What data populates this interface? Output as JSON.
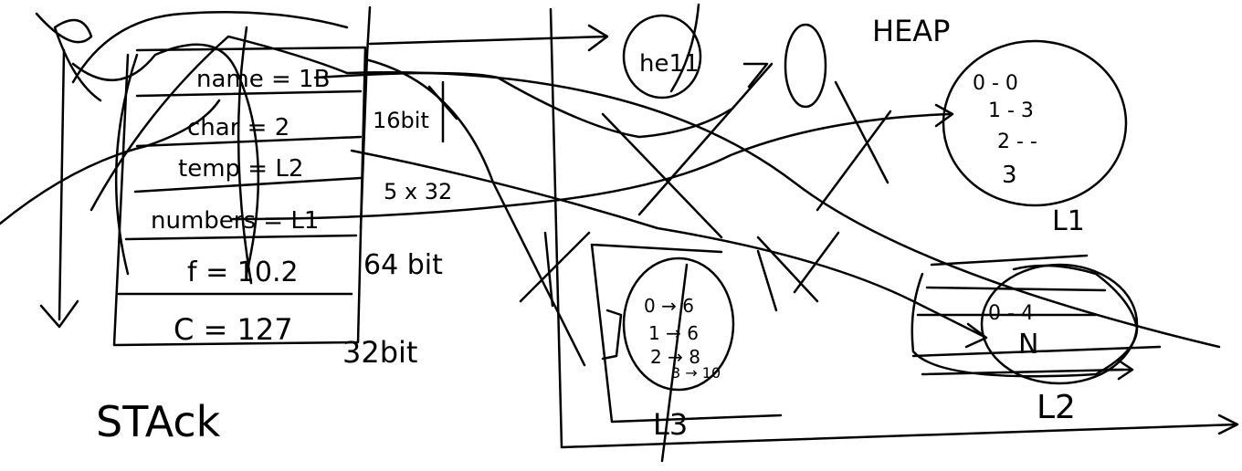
{
  "stack": {
    "title": "STAck",
    "cells": [
      "name = 1B",
      "char = 2",
      "temp = L2",
      "numbers = L1",
      "f = 10.2",
      "C = 127"
    ],
    "sizes": [
      "16bit",
      "5 x 32",
      "64 bit",
      "32bit"
    ]
  },
  "heap": {
    "title": "HEAP",
    "blob_he": "he11",
    "l1": {
      "label": "L1",
      "lines": [
        "0 - 0",
        "1 - 3",
        "2 - -",
        "3"
      ]
    },
    "l2": {
      "label": "L2",
      "lines": [
        "0 - 4",
        "N"
      ]
    },
    "l3": {
      "label": "L3",
      "lines": [
        "0 → 6",
        "1 → 6",
        "2 → 8",
        "3 → 10"
      ]
    }
  },
  "colors": {
    "ink": "#000000",
    "background": "#ffffff"
  }
}
